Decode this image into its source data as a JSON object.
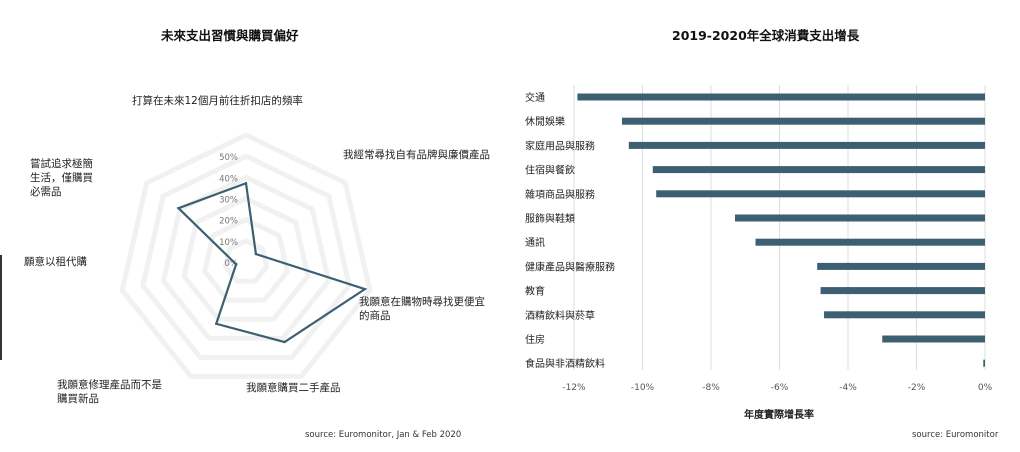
{
  "chart_data": [
    {
      "type": "radar",
      "title": "未來支出習慣與購買偏好",
      "axes": [
        "打算在未來12個月前往折扣店的頻率",
        "我經常尋找自有品牌與廉價產品",
        "我願意在購物時尋找更便宜的商品",
        "我願意購買二手產品",
        "我願意修理產品而不是購買新品",
        "願意以租代購",
        "嘗試追求極簡生活，僅購買必需品"
      ],
      "axis_label_lines": [
        [
          "打算在未來12個月前往折扣店的頻率"
        ],
        [
          "我經常尋找自有品牌與廉價產品"
        ],
        [
          "我願意在購物時尋找更便宜",
          "的商品"
        ],
        [
          "我願意購買二手產品"
        ],
        [
          "我願意修理產品而不是",
          "購買新品"
        ],
        [
          "願意以租代購"
        ],
        [
          "嘗試追求極簡",
          "生活，僅購買",
          "必需品"
        ]
      ],
      "ticks": [
        "0%",
        "10%",
        "20%",
        "30%",
        "40%",
        "50%"
      ],
      "rmax": 50,
      "values": [
        31,
        5,
        48,
        35,
        27,
        4,
        34
      ],
      "line_color": "#3d5f72",
      "source": "source: Euromonitor, Jan & Feb 2020"
    },
    {
      "type": "bar",
      "orientation": "horizontal",
      "title": "2019-2020年全球消費支出增長",
      "categories": [
        "交通",
        "休閒娛樂",
        "家庭用品與服務",
        "住宿與餐飲",
        "雜項商品與服務",
        "服飾與鞋類",
        "通訊",
        "健康產品與醫療服務",
        "教育",
        "酒精飲料與菸草",
        "住房",
        "食品與非酒精飲料"
      ],
      "values": [
        -11.9,
        -10.6,
        -10.4,
        -9.7,
        -9.6,
        -7.3,
        -6.7,
        -4.9,
        -4.8,
        -4.7,
        -3.0,
        -0.05
      ],
      "xlim": [
        -12,
        0
      ],
      "xticks": [
        "-12%",
        "-10%",
        "-8%",
        "-6%",
        "-4%",
        "-2%",
        "0%"
      ],
      "xtick_values": [
        -12,
        -10,
        -8,
        -6,
        -4,
        -2,
        0
      ],
      "xlabel": "年度實際增長率",
      "bar_color": "#3d5f72",
      "source": "source: Euromonitor"
    }
  ]
}
